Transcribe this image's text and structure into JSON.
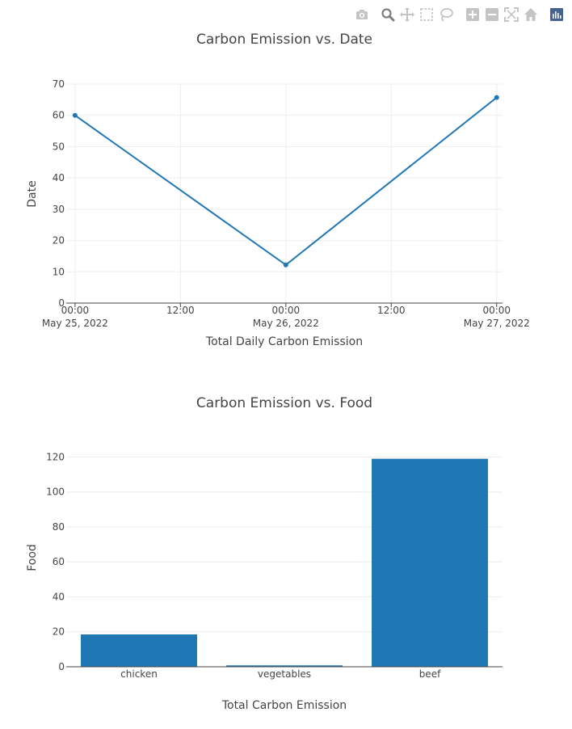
{
  "modebar": {
    "buttons": [
      {
        "name": "camera-icon",
        "title": "Download plot as a png"
      },
      {
        "name": "zoom-icon",
        "title": "Zoom"
      },
      {
        "name": "pan-icon",
        "title": "Pan"
      },
      {
        "name": "box-select-icon",
        "title": "Box Select"
      },
      {
        "name": "lasso-select-icon",
        "title": "Lasso Select"
      },
      {
        "name": "zoom-in-icon",
        "title": "Zoom in"
      },
      {
        "name": "zoom-out-icon",
        "title": "Zoom out"
      },
      {
        "name": "autoscale-icon",
        "title": "Autoscale"
      },
      {
        "name": "reset-axes-icon",
        "title": "Reset axes"
      },
      {
        "name": "plotly-logo-icon",
        "title": "Produced with Plotly"
      }
    ],
    "icon_color": "#c4c4c4",
    "active_color": "#7f7f7f",
    "logo_color": "#44638f"
  },
  "chart_data": [
    {
      "type": "line",
      "title": "Carbon Emission vs. Date",
      "xlabel": "Total Daily Carbon Emission",
      "ylabel": "Date",
      "x": [
        "2022-05-25 00:00",
        "2022-05-26 00:00",
        "2022-05-27 00:00"
      ],
      "y": [
        60,
        12.2,
        65.7
      ],
      "xlim": [
        "2022-05-24 23:00",
        "2022-05-27 00:40"
      ],
      "ylim": [
        0,
        70
      ],
      "yticks": [
        0,
        10,
        20,
        30,
        40,
        50,
        60,
        70
      ],
      "xticks": [
        {
          "at": "2022-05-25 00:00",
          "line1": "00:00",
          "line2": "May 25, 2022"
        },
        {
          "at": "2022-05-25 12:00",
          "line1": "12:00",
          "line2": ""
        },
        {
          "at": "2022-05-26 00:00",
          "line1": "00:00",
          "line2": "May 26, 2022"
        },
        {
          "at": "2022-05-26 12:00",
          "line1": "12:00",
          "line2": ""
        },
        {
          "at": "2022-05-27 00:00",
          "line1": "00:00",
          "line2": "May 27, 2022"
        }
      ],
      "grid": true,
      "markers": true,
      "color": "#1f77b4"
    },
    {
      "type": "bar",
      "title": "Carbon Emission vs. Food",
      "xlabel": "Total Carbon Emission",
      "ylabel": "Food",
      "categories": [
        "chicken",
        "vegetables",
        "beef"
      ],
      "values": [
        18.5,
        0.8,
        119
      ],
      "ylim": [
        0,
        125.3
      ],
      "yticks": [
        0,
        20,
        40,
        60,
        80,
        100,
        120
      ],
      "grid": true,
      "color": "#1f77b4"
    }
  ]
}
